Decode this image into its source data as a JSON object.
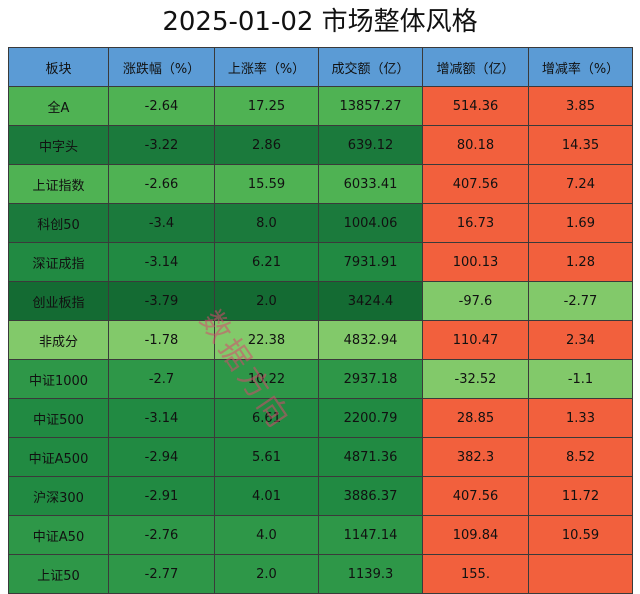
{
  "title": "2025-01-02 市场整体风格",
  "watermark": "数据方向",
  "columns": [
    "板块",
    "涨跌幅（%）",
    "上涨率（%）",
    "成交额（亿）",
    "增减额（亿）",
    "增减率（%）"
  ],
  "rows": [
    {
      "name": "全A",
      "change": "-2.64",
      "up_rate": "17.25",
      "turnover": "13857.27",
      "delta": "514.36",
      "delta_rate": "3.85",
      "colors": [
        "#4fb253",
        "#4fb253",
        "#4fb253",
        "#4fb253",
        "#f2603d",
        "#f2603d"
      ]
    },
    {
      "name": "中字头",
      "change": "-3.22",
      "up_rate": "2.86",
      "turnover": "639.12",
      "delta": "80.18",
      "delta_rate": "14.35",
      "colors": [
        "#1b7a3c",
        "#1b7a3c",
        "#1b7a3c",
        "#1b7a3c",
        "#f2603d",
        "#f2603d"
      ]
    },
    {
      "name": "上证指数",
      "change": "-2.66",
      "up_rate": "15.59",
      "turnover": "6033.41",
      "delta": "407.56",
      "delta_rate": "7.24",
      "colors": [
        "#4fb253",
        "#4fb253",
        "#4fb253",
        "#4fb253",
        "#f2603d",
        "#f2603d"
      ]
    },
    {
      "name": "科创50",
      "change": "-3.4",
      "up_rate": "8.0",
      "turnover": "1004.06",
      "delta": "16.73",
      "delta_rate": "1.69",
      "colors": [
        "#1b7a3c",
        "#1b7a3c",
        "#1b7a3c",
        "#1b7a3c",
        "#f2603d",
        "#f2603d"
      ]
    },
    {
      "name": "深证成指",
      "change": "-3.14",
      "up_rate": "6.21",
      "turnover": "7931.91",
      "delta": "100.13",
      "delta_rate": "1.28",
      "colors": [
        "#218a42",
        "#218a42",
        "#218a42",
        "#218a42",
        "#f2603d",
        "#f2603d"
      ]
    },
    {
      "name": "创业板指",
      "change": "-3.79",
      "up_rate": "2.0",
      "turnover": "3424.4",
      "delta": "-97.6",
      "delta_rate": "-2.77",
      "colors": [
        "#146b33",
        "#146b33",
        "#146b33",
        "#146b33",
        "#82c96a",
        "#82c96a"
      ]
    },
    {
      "name": "非成分",
      "change": "-1.78",
      "up_rate": "22.38",
      "turnover": "4832.94",
      "delta": "110.47",
      "delta_rate": "2.34",
      "colors": [
        "#82c96a",
        "#82c96a",
        "#82c96a",
        "#82c96a",
        "#f2603d",
        "#f2603d"
      ]
    },
    {
      "name": "中证1000",
      "change": "-2.7",
      "up_rate": "10.22",
      "turnover": "2937.18",
      "delta": "-32.52",
      "delta_rate": "-1.1",
      "colors": [
        "#2e9748",
        "#2e9748",
        "#2e9748",
        "#2e9748",
        "#82c96a",
        "#82c96a"
      ]
    },
    {
      "name": "中证500",
      "change": "-3.14",
      "up_rate": "6.61",
      "turnover": "2200.79",
      "delta": "28.85",
      "delta_rate": "1.33",
      "colors": [
        "#218a42",
        "#218a42",
        "#218a42",
        "#218a42",
        "#f2603d",
        "#f2603d"
      ]
    },
    {
      "name": "中证A500",
      "change": "-2.94",
      "up_rate": "5.61",
      "turnover": "4871.36",
      "delta": "382.3",
      "delta_rate": "8.52",
      "colors": [
        "#218a42",
        "#218a42",
        "#218a42",
        "#218a42",
        "#f2603d",
        "#f2603d"
      ]
    },
    {
      "name": "沪深300",
      "change": "-2.91",
      "up_rate": "4.01",
      "turnover": "3886.37",
      "delta": "407.56",
      "delta_rate": "11.72",
      "colors": [
        "#218a42",
        "#218a42",
        "#218a42",
        "#218a42",
        "#f2603d",
        "#f2603d"
      ]
    },
    {
      "name": "中证A50",
      "change": "-2.76",
      "up_rate": "4.0",
      "turnover": "1147.14",
      "delta": "109.84",
      "delta_rate": "10.59",
      "colors": [
        "#2e9748",
        "#2e9748",
        "#2e9748",
        "#2e9748",
        "#f2603d",
        "#f2603d"
      ]
    },
    {
      "name": "上证50",
      "change": "-2.77",
      "up_rate": "2.0",
      "turnover": "1139.3",
      "delta": "155.",
      "delta_rate": "",
      "colors": [
        "#2e9748",
        "#2e9748",
        "#2e9748",
        "#2e9748",
        "#f2603d",
        "#f2603d"
      ]
    }
  ]
}
